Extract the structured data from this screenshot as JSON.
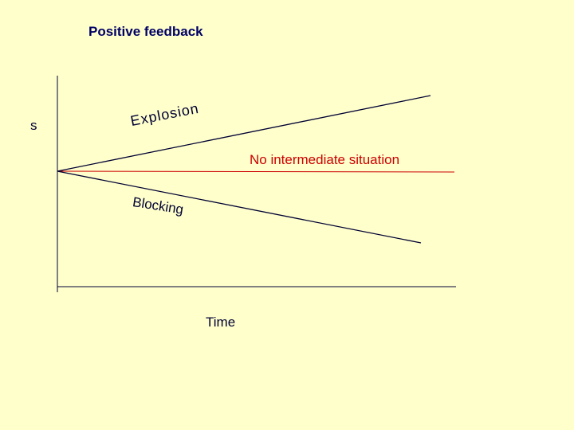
{
  "title": "Positive feedback",
  "y_axis_label": "s",
  "x_axis_label": "Time",
  "curves": {
    "explosion_label": "Explosion",
    "blocking_label": "Blocking",
    "neutral_label": "No intermediate situation"
  },
  "colors": {
    "background": "#ffffcc",
    "title": "#000066",
    "lines": "#000033",
    "neutral": "#cc0000"
  }
}
